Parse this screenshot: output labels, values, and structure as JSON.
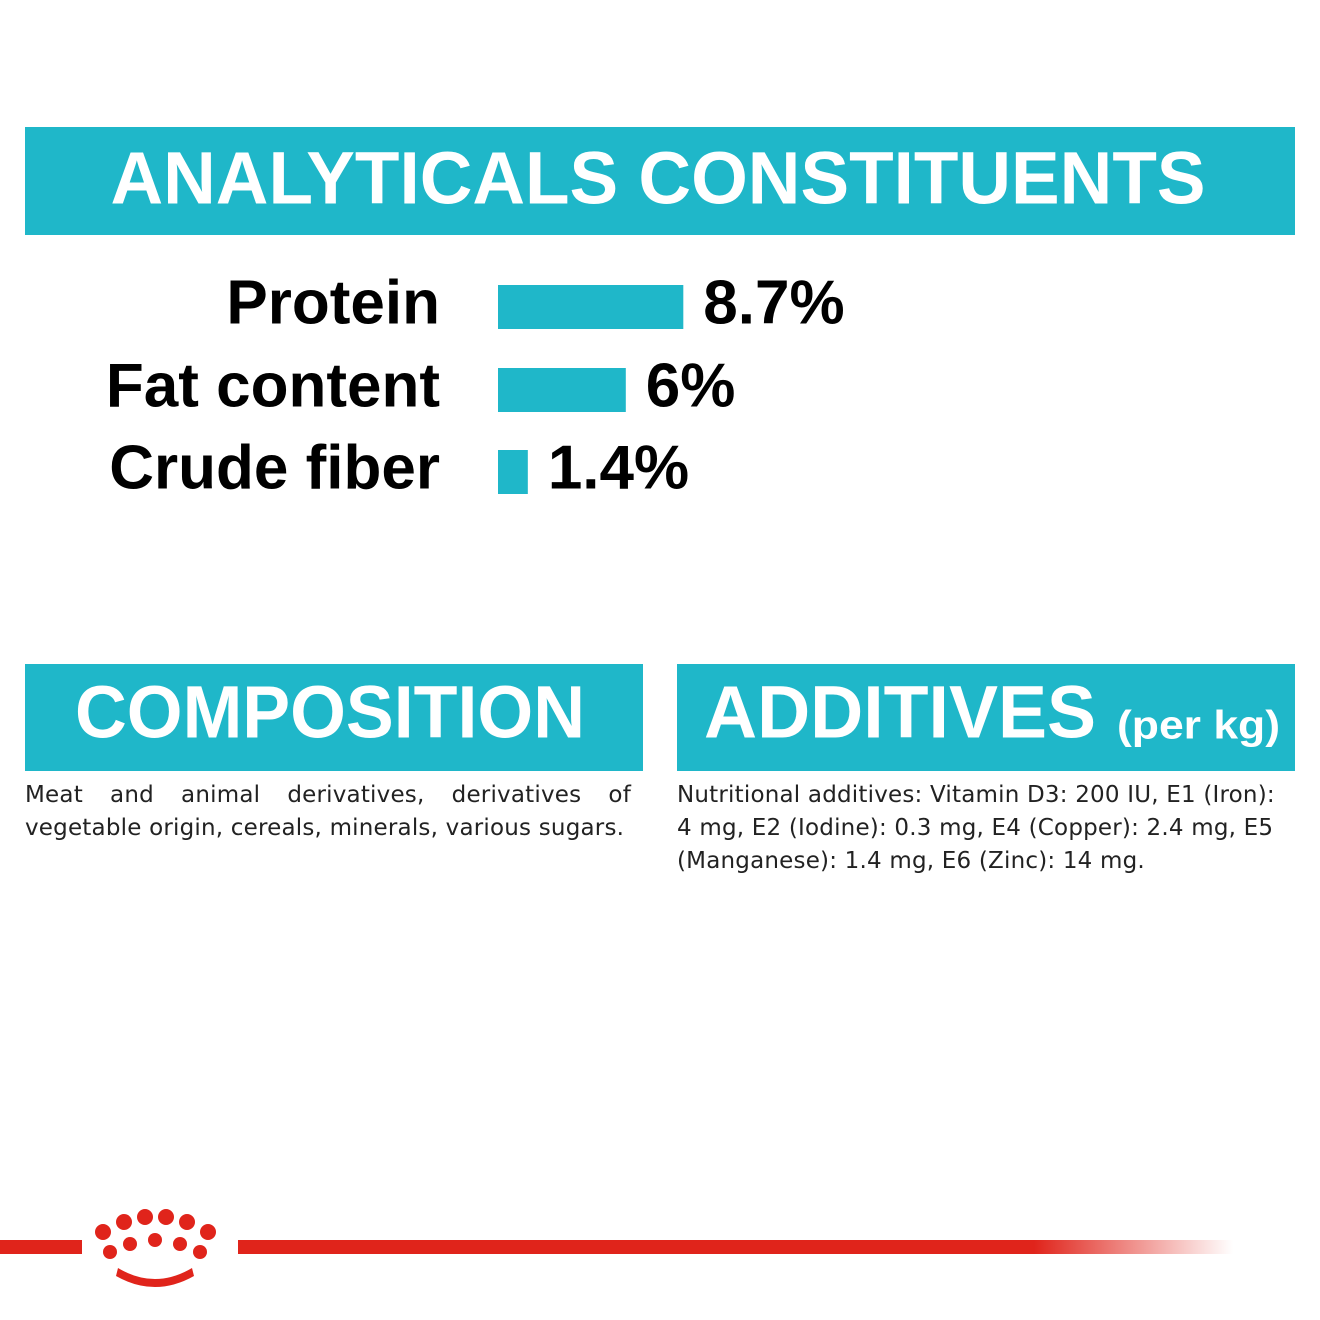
{
  "header": {
    "title": "ANALYTICALS CONSTITUENTS"
  },
  "chart_data": {
    "type": "bar",
    "categories": [
      "Protein",
      "Fat content",
      "Crude fiber"
    ],
    "values": [
      8.7,
      6,
      1.4
    ],
    "value_labels": [
      "8.7%",
      "6%",
      "1.4%"
    ],
    "color": "#1fb7c9"
  },
  "composition": {
    "title": "COMPOSITION",
    "text": "Meat and animal derivatives, derivatives of vegetable origin, cereals, minerals, various sugars."
  },
  "additives": {
    "title": "ADDITIVES",
    "unit": "(per kg)",
    "text": "Nutritional additives: Vitamin D3: 200 IU, E1 (Iron): 4 mg, E2 (Iodine): 0.3 mg, E4 (Copper): 2.4 mg, E5 (Manganese): 1.4 mg, E6 (Zinc): 14 mg."
  }
}
